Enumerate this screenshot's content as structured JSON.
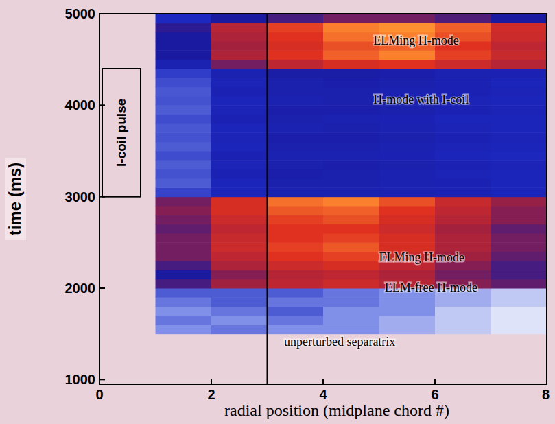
{
  "chart_data": {
    "type": "heatmap",
    "x_label": "radial position (midplane chord #)",
    "y_label": "time (ms)",
    "xlim": [
      0,
      8
    ],
    "ylim": [
      950,
      5000
    ],
    "xticks": [
      0,
      2,
      4,
      6,
      8
    ],
    "yticks": [
      1000,
      2000,
      3000,
      4000,
      5000
    ],
    "x_edges": [
      1,
      2,
      3,
      4,
      5,
      6,
      7,
      8
    ],
    "y_edges": [
      1500,
      1600,
      1700,
      1800,
      1900,
      2000,
      2100,
      2200,
      2300,
      2400,
      2500,
      2600,
      2700,
      2800,
      2900,
      3000,
      3100,
      3200,
      3300,
      3400,
      3500,
      3600,
      3700,
      3800,
      3900,
      4000,
      4100,
      4200,
      4300,
      4400,
      4500,
      4600,
      4700,
      4800,
      4900,
      5000
    ],
    "color_range": [
      0,
      1
    ],
    "cells": [
      [
        0.2,
        0.25,
        0.2,
        0.2,
        0.15,
        0.1,
        0.05
      ],
      [
        0.25,
        0.2,
        0.25,
        0.2,
        0.15,
        0.1,
        0.05
      ],
      [
        0.2,
        0.25,
        0.3,
        0.2,
        0.2,
        0.1,
        0.05
      ],
      [
        0.25,
        0.3,
        0.25,
        0.25,
        0.2,
        0.15,
        0.1
      ],
      [
        0.3,
        0.3,
        0.3,
        0.25,
        0.2,
        0.15,
        0.1
      ],
      [
        0.55,
        0.65,
        0.72,
        0.75,
        0.7,
        0.62,
        0.58
      ],
      [
        0.5,
        0.62,
        0.7,
        0.72,
        0.68,
        0.6,
        0.55
      ],
      [
        0.55,
        0.68,
        0.75,
        0.78,
        0.72,
        0.62,
        0.55
      ],
      [
        0.6,
        0.72,
        0.8,
        0.82,
        0.75,
        0.65,
        0.58
      ],
      [
        0.6,
        0.75,
        0.82,
        0.85,
        0.78,
        0.68,
        0.6
      ],
      [
        0.6,
        0.74,
        0.8,
        0.82,
        0.78,
        0.68,
        0.6
      ],
      [
        0.58,
        0.72,
        0.8,
        0.8,
        0.75,
        0.66,
        0.58
      ],
      [
        0.6,
        0.75,
        0.82,
        0.84,
        0.78,
        0.7,
        0.62
      ],
      [
        0.62,
        0.78,
        0.85,
        0.86,
        0.8,
        0.72,
        0.62
      ],
      [
        0.6,
        0.78,
        0.88,
        0.9,
        0.84,
        0.74,
        0.64
      ],
      [
        0.35,
        0.42,
        0.45,
        0.45,
        0.45,
        0.44,
        0.42
      ],
      [
        0.3,
        0.42,
        0.46,
        0.46,
        0.45,
        0.44,
        0.42
      ],
      [
        0.32,
        0.44,
        0.47,
        0.46,
        0.45,
        0.43,
        0.42
      ],
      [
        0.3,
        0.43,
        0.46,
        0.47,
        0.46,
        0.44,
        0.43
      ],
      [
        0.33,
        0.44,
        0.45,
        0.45,
        0.44,
        0.42,
        0.41
      ],
      [
        0.3,
        0.42,
        0.46,
        0.46,
        0.45,
        0.43,
        0.42
      ],
      [
        0.32,
        0.43,
        0.47,
        0.47,
        0.46,
        0.44,
        0.43
      ],
      [
        0.31,
        0.42,
        0.45,
        0.46,
        0.45,
        0.43,
        0.42
      ],
      [
        0.33,
        0.44,
        0.46,
        0.45,
        0.44,
        0.42,
        0.42
      ],
      [
        0.3,
        0.43,
        0.47,
        0.47,
        0.46,
        0.44,
        0.43
      ],
      [
        0.32,
        0.42,
        0.45,
        0.46,
        0.45,
        0.43,
        0.42
      ],
      [
        0.31,
        0.44,
        0.46,
        0.46,
        0.45,
        0.44,
        0.43
      ],
      [
        0.33,
        0.43,
        0.46,
        0.47,
        0.46,
        0.44,
        0.42
      ],
      [
        0.36,
        0.45,
        0.48,
        0.48,
        0.47,
        0.45,
        0.44
      ],
      [
        0.45,
        0.6,
        0.72,
        0.78,
        0.8,
        0.75,
        0.7
      ],
      [
        0.5,
        0.68,
        0.8,
        0.86,
        0.9,
        0.82,
        0.74
      ],
      [
        0.5,
        0.66,
        0.78,
        0.84,
        0.86,
        0.8,
        0.72
      ],
      [
        0.5,
        0.68,
        0.8,
        0.88,
        0.9,
        0.84,
        0.75
      ],
      [
        0.52,
        0.7,
        0.82,
        0.9,
        0.92,
        0.86,
        0.76
      ],
      [
        0.4,
        0.5,
        0.55,
        0.6,
        0.6,
        0.56,
        0.5
      ]
    ],
    "annotations": [
      {
        "text": "ELMing H-mode",
        "x": 4.9,
        "y": 4660
      },
      {
        "text": "H-mode with I-coil",
        "x": 4.9,
        "y": 4020
      },
      {
        "text": "ELMing H-mode",
        "x": 5.0,
        "y": 2290
      },
      {
        "text": "ELM-free H-mode",
        "x": 5.1,
        "y": 1960
      },
      {
        "text": "unperturbed separatrix",
        "x": 3.3,
        "y": 1370
      }
    ],
    "separatrix": {
      "x": 3
    },
    "i_coil_pulse": {
      "label": "I-coil pulse",
      "start": 3000,
      "end": 4400
    }
  }
}
